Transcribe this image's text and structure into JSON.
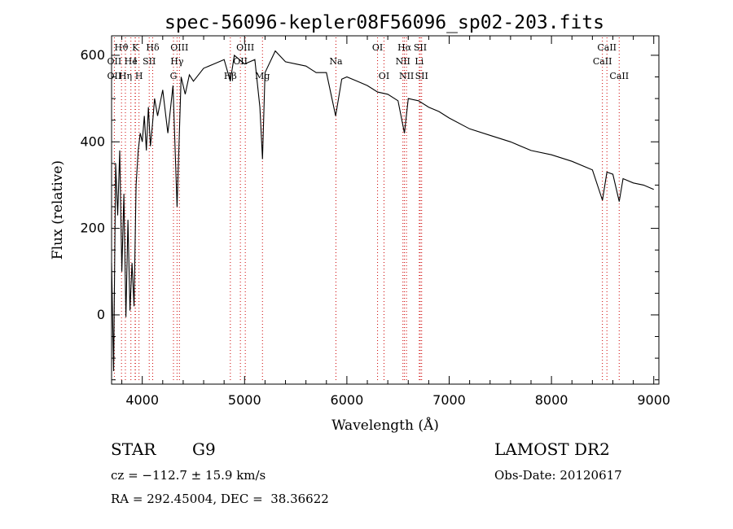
{
  "chart_data": {
    "type": "line",
    "title": "spec-56096-kepler08F56096_sp02-203.fits",
    "xlabel": "Wavelength (Å)",
    "ylabel": "Flux (relative)",
    "xlim": [
      3700,
      9050
    ],
    "ylim": [
      -160,
      645
    ],
    "xticks": [
      4000,
      5000,
      6000,
      7000,
      8000,
      9000
    ],
    "yticks": [
      0,
      200,
      400,
      600
    ],
    "grid": false,
    "line_color": "#000000",
    "marker_color": "#cc0000",
    "series": [
      {
        "x": [
          3700,
          3720,
          3740,
          3760,
          3780,
          3800,
          3820,
          3840,
          3860,
          3880,
          3900,
          3920,
          3940,
          3960,
          3980,
          4000,
          4020,
          4040,
          4060,
          4080,
          4100,
          4120,
          4150,
          4200,
          4250,
          4300,
          4340,
          4380,
          4420,
          4460,
          4500,
          4600,
          4700,
          4800,
          4861,
          4900,
          5000,
          5100,
          5150,
          5175,
          5200,
          5300,
          5400,
          5500,
          5600,
          5700,
          5800,
          5890,
          5950,
          6000,
          6100,
          6200,
          6300,
          6400,
          6500,
          6563,
          6600,
          6700,
          6800,
          6900,
          7000,
          7200,
          7400,
          7600,
          7800,
          8000,
          8200,
          8400,
          8498,
          8542,
          8600,
          8662,
          8700,
          8800,
          8900,
          9000
        ],
        "y": [
          120,
          -130,
          350,
          230,
          380,
          100,
          280,
          -5,
          220,
          10,
          120,
          20,
          300,
          380,
          420,
          400,
          460,
          380,
          480,
          390,
          440,
          500,
          460,
          520,
          420,
          530,
          250,
          550,
          510,
          555,
          540,
          570,
          580,
          590,
          540,
          600,
          580,
          590,
          480,
          360,
          560,
          610,
          585,
          580,
          575,
          560,
          560,
          460,
          545,
          550,
          540,
          530,
          515,
          510,
          495,
          420,
          500,
          495,
          480,
          470,
          455,
          430,
          415,
          400,
          380,
          370,
          355,
          335,
          265,
          330,
          325,
          262,
          315,
          305,
          300,
          290
        ]
      }
    ],
    "lines": [
      {
        "label": "Hϑ",
        "x": 3797,
        "row": 1
      },
      {
        "label": "K",
        "x": 3933,
        "row": 1
      },
      {
        "label": "Hδ",
        "x": 4102,
        "row": 1
      },
      {
        "label": "OIII",
        "x": 4363,
        "row": 1
      },
      {
        "label": "OIII",
        "x": 5007,
        "row": 1
      },
      {
        "label": "OI",
        "x": 6300,
        "row": 1
      },
      {
        "label": "Hα",
        "x": 6563,
        "row": 1
      },
      {
        "label": "SII",
        "x": 6717,
        "row": 1
      },
      {
        "label": "CaII",
        "x": 8542,
        "row": 1
      },
      {
        "label": "OII",
        "x": 3727,
        "row": 2
      },
      {
        "label": "He",
        "x": 3889,
        "row": 2
      },
      {
        "label": "I",
        "x": 3930,
        "row": 2
      },
      {
        "label": "SII",
        "x": 4068,
        "row": 2
      },
      {
        "label": "Hγ",
        "x": 4340,
        "row": 2
      },
      {
        "label": "OII",
        "x": 4959,
        "row": 2
      },
      {
        "label": "Na",
        "x": 5893,
        "row": 2
      },
      {
        "label": "NII",
        "x": 6548,
        "row": 2
      },
      {
        "label": "Li",
        "x": 6708,
        "row": 2
      },
      {
        "label": "CaII",
        "x": 8498,
        "row": 2
      },
      {
        "label": "OII",
        "x": 3727,
        "row": 3
      },
      {
        "label": "Hη",
        "x": 3835,
        "row": 3
      },
      {
        "label": "H",
        "x": 3968,
        "row": 3
      },
      {
        "label": "G",
        "x": 4305,
        "row": 3
      },
      {
        "label": "Hβ",
        "x": 4861,
        "row": 3
      },
      {
        "label": "Mg",
        "x": 5175,
        "row": 3
      },
      {
        "label": "OI",
        "x": 6363,
        "row": 3
      },
      {
        "label": "NII",
        "x": 6583,
        "row": 3
      },
      {
        "label": "SII",
        "x": 6731,
        "row": 3
      },
      {
        "label": "CaII",
        "x": 8662,
        "row": 3
      }
    ]
  },
  "info": {
    "class_label": "STAR",
    "subclass": "G9",
    "survey": "LAMOST DR2",
    "cz": "cz = −112.7 ± 15.9 km/s",
    "obs_date": "Obs-Date: 20120617",
    "coords": "RA = 292.45004, DEC =  38.36622"
  }
}
